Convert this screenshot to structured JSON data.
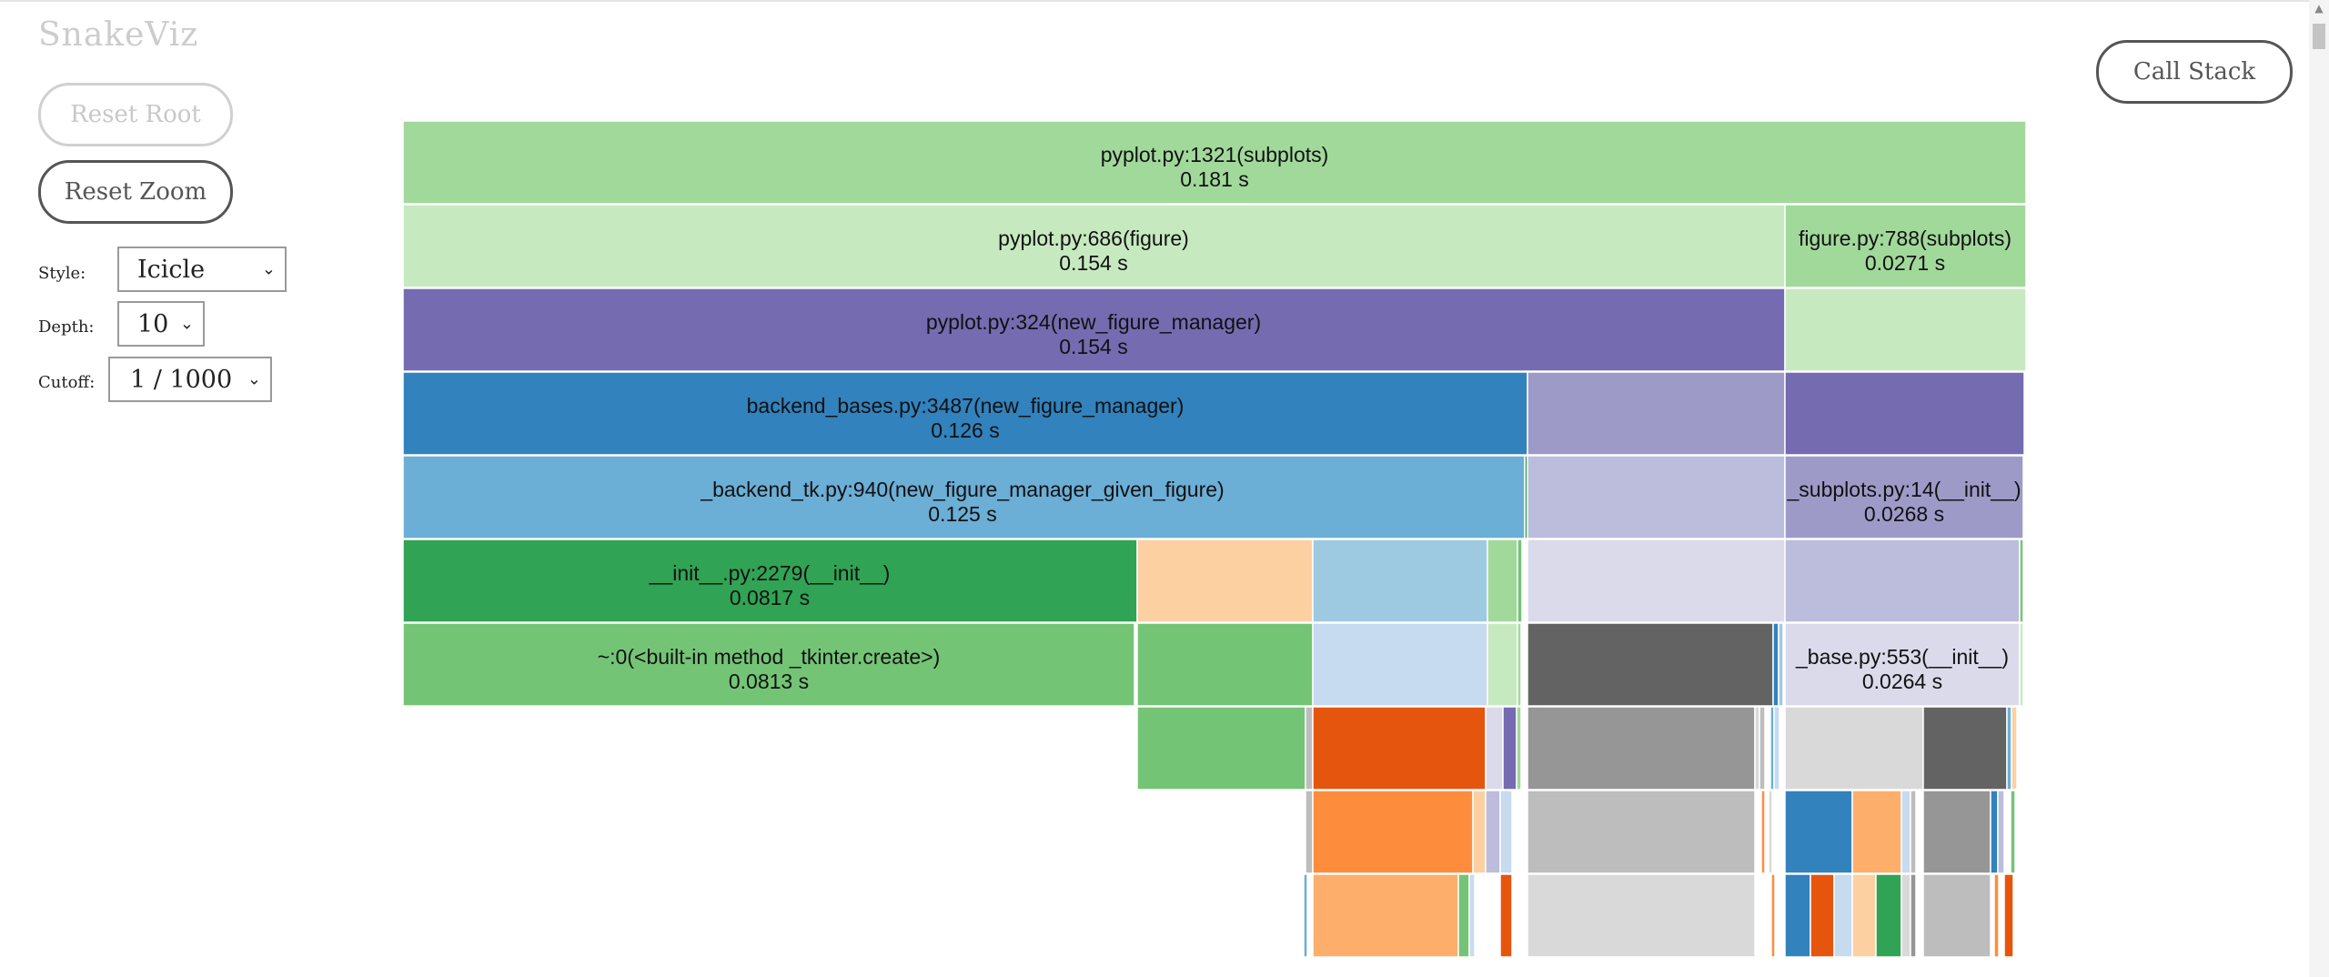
{
  "app": {
    "title": "SnakeViz"
  },
  "controls": {
    "reset_root": "Reset Root",
    "reset_zoom": "Reset Zoom",
    "call_stack": "Call Stack",
    "style_label": "Style:",
    "style_value": "Icicle",
    "depth_label": "Depth:",
    "depth_value": "10",
    "cutoff_label": "Cutoff:",
    "cutoff_value": "1 / 1000"
  },
  "colors": {
    "green_light": "#a1d99b",
    "green_pale": "#c7e9c0",
    "purple": "#756bb1",
    "purple_mid": "#9e9ac8",
    "purple_light": "#bcbddc",
    "purple_pale": "#dadaeb",
    "blue": "#3182bd",
    "blue_mid": "#6baed6",
    "blue_light": "#9ecae1",
    "blue_pale": "#c6dbef",
    "green": "#31a354",
    "green_mid": "#74c476",
    "orange": "#e6550d",
    "orange_mid": "#fd8d3c",
    "orange_light": "#fdae6b",
    "orange_pale": "#fdd0a2",
    "grey_dark": "#636363",
    "grey": "#969696",
    "grey_light": "#bdbdbd",
    "grey_pale": "#d9d9d9"
  },
  "icicle": {
    "total_time_s": 0.181,
    "nodes": [
      {
        "name": "pyplot.py:1321(subplots)",
        "time": "0.181 s"
      },
      {
        "name": "pyplot.py:686(figure)",
        "time": "0.154 s"
      },
      {
        "name": "figure.py:788(subplots)",
        "time": "0.0271 s"
      },
      {
        "name": "pyplot.py:324(new_figure_manager)",
        "time": "0.154 s"
      },
      {
        "name": "backend_bases.py:3487(new_figure_manager)",
        "time": "0.126 s"
      },
      {
        "name": "_backend_tk.py:940(new_figure_manager_given_figure)",
        "time": "0.125 s"
      },
      {
        "name": "_subplots.py:14(__init__)",
        "time": "0.0268 s"
      },
      {
        "name": "__init__.py:2279(__init__)",
        "time": "0.0817 s"
      },
      {
        "name": "~:0(<built-in method _tkinter.create>)",
        "time": "0.0813 s"
      },
      {
        "name": "_base.py:553(__init__)",
        "time": "0.0264 s"
      }
    ]
  }
}
